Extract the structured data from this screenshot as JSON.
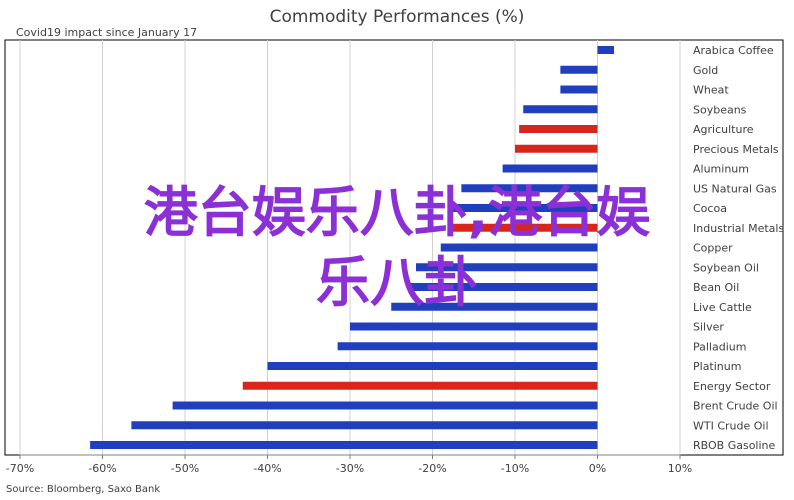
{
  "chart_data": {
    "type": "bar",
    "orientation": "horizontal",
    "title": "Commodity Performances (%)",
    "subtitle": "Covid19 impact since January 17",
    "source": "Source: Bloomberg, Saxo Bank",
    "xlim": [
      -70,
      10
    ],
    "x_ticks": [
      -70,
      -60,
      -50,
      -40,
      -30,
      -20,
      -10,
      0,
      10
    ],
    "x_tick_labels": [
      "-70%",
      "-60%",
      "-50%",
      "-40%",
      "-30%",
      "-20%",
      "-10%",
      "0%",
      "10%"
    ],
    "grid": "vertical",
    "colors": {
      "blue": "#1F3FBF",
      "red": "#D9261C"
    },
    "categories": [
      "Arabica Coffee",
      "Gold",
      "Wheat",
      "Soybeans",
      "Agriculture",
      "Precious Metals",
      "Aluminum",
      "US Natural Gas",
      "Cocoa",
      "Industrial Metals",
      "Copper",
      "Soybean Oil",
      "Bean Oil",
      "Live Cattle",
      "Silver",
      "Palladium",
      "Platinum",
      "Energy Sector",
      "Brent Crude Oil",
      "WTI Crude Oil",
      "RBOB Gasoline"
    ],
    "values": [
      2,
      -4.5,
      -4.5,
      -9,
      -9.5,
      -10,
      -11.5,
      -16.5,
      -17.5,
      -18,
      -19,
      -22,
      -23,
      -25,
      -30,
      -31.5,
      -40,
      -43,
      -51.5,
      -56.5,
      -61.5
    ],
    "bar_colors": [
      "blue",
      "blue",
      "blue",
      "blue",
      "red",
      "red",
      "blue",
      "blue",
      "blue",
      "red",
      "blue",
      "blue",
      "blue",
      "blue",
      "blue",
      "blue",
      "blue",
      "red",
      "blue",
      "blue",
      "blue"
    ]
  },
  "overlay": {
    "line1": "港台娱乐八卦,港台娱",
    "line2": "乐八卦"
  }
}
